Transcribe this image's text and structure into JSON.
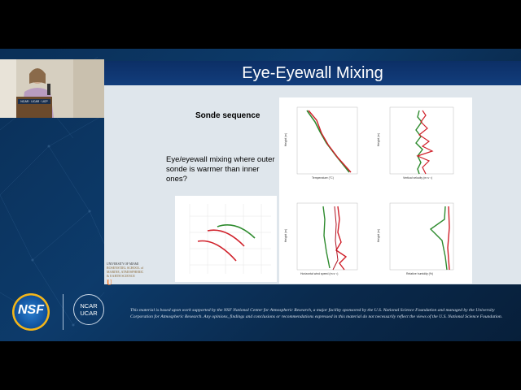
{
  "slide": {
    "title": "Eye-Eyewall Mixing",
    "subtitle": "Sonde sequence",
    "body_text": "Eye/eyewall mixing where outer sonde is warmer than inner ones?"
  },
  "podium": {
    "sign_text": "NCAR · UCAR · UCP"
  },
  "left_logo": {
    "line1": "UNIVERSITY OF MIAMI",
    "line2": "ROSENSTIEL SCHOOL of",
    "line3": "MARINE, ATMOSPHERIC",
    "line4": "& EARTH SCIENCE"
  },
  "footer": {
    "nsf_label": "NSF",
    "ncar_label1": "NCAR",
    "ncar_label2": "UCAR",
    "disclaimer": "This material is based upon work supported by the NSF National Center for Atmospheric Research, a major facility sponsored by the U.S. National Science Foundation and managed by the University Corporation for Atmospheric Research. Any opinions, findings and conclusions or recommendations expressed in this material do not necessarily reflect the views of the U.S. National Science Foundation."
  },
  "plots": {
    "p1_xlabel": "Temperature (°C)",
    "p2_xlabel": "Vertical velocity (m s⁻¹)",
    "p3_xlabel": "Horizontal wind speed (m s⁻¹)",
    "p4_xlabel": "Relative humidity (%)",
    "ylabel": "Height (m)"
  },
  "colors": {
    "green": "#2e8b2e",
    "red": "#d0202a",
    "dark_red": "#b01020",
    "title_bar": "#0c2f66"
  }
}
